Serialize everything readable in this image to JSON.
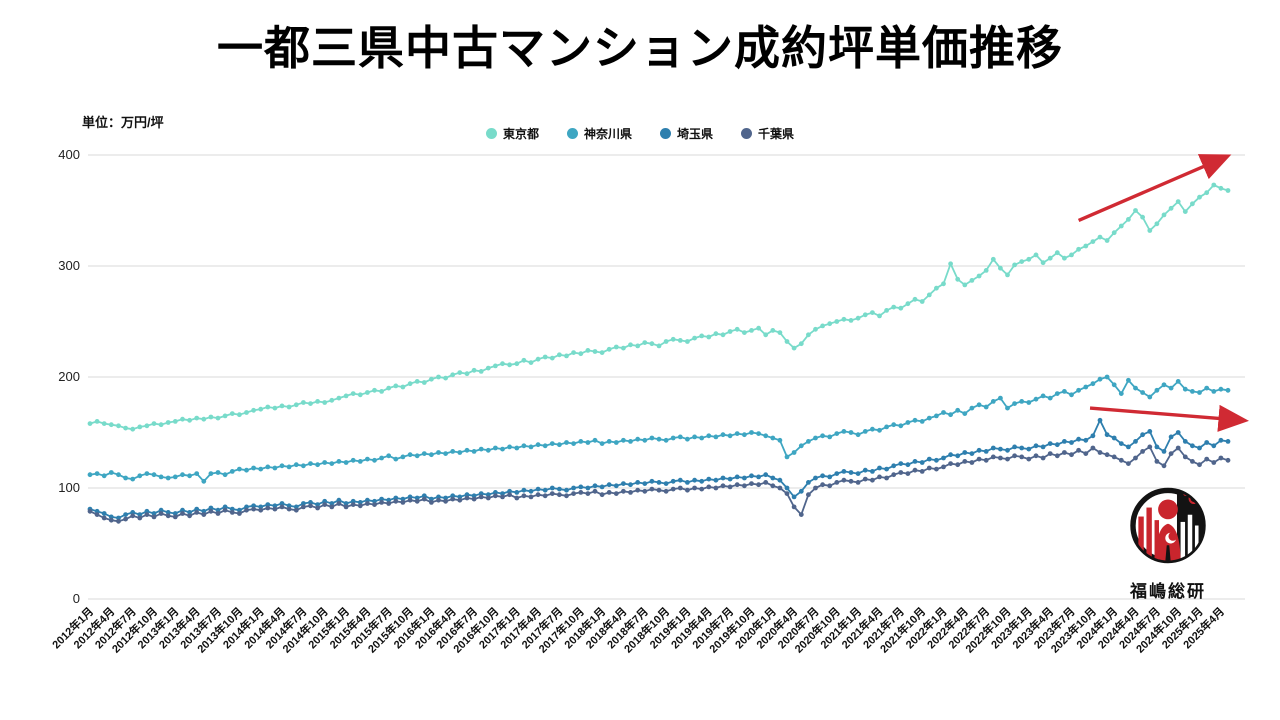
{
  "title": "一都三県中古マンション成約坪単価推移",
  "unit_label": "単位：万円/坪",
  "legend": {
    "items": [
      {
        "label": "東京都",
        "color": "#78dbca"
      },
      {
        "label": "神奈川県",
        "color": "#3ea6c2"
      },
      {
        "label": "埼玉県",
        "color": "#2e7fae"
      },
      {
        "label": "千葉県",
        "color": "#50658c"
      }
    ]
  },
  "logo": {
    "caption": "福嶋総研"
  },
  "chart_data": {
    "type": "line",
    "title": "一都三県中古マンション成約坪単価推移",
    "ylabel": "万円/坪",
    "ylim": [
      0,
      400
    ],
    "y_ticks": [
      0,
      100,
      200,
      300,
      400
    ],
    "grid": "horizontal",
    "legend_position": "top-center",
    "x_unit": "month",
    "x_start": "2012年1月",
    "x_end": "2025年5月",
    "x_tick_step_months": 3,
    "x_tick_labels": [
      "2012年1月",
      "2012年4月",
      "2012年7月",
      "2012年10月",
      "2013年1月",
      "2013年4月",
      "2013年7月",
      "2013年10月",
      "2014年1月",
      "2014年4月",
      "2014年7月",
      "2014年10月",
      "2015年1月",
      "2015年4月",
      "2015年7月",
      "2015年10月",
      "2016年1月",
      "2016年4月",
      "2016年7月",
      "2016年10月",
      "2017年1月",
      "2017年4月",
      "2017年7月",
      "2017年10月",
      "2018年1月",
      "2018年4月",
      "2018年7月",
      "2018年10月",
      "2019年1月",
      "2019年4月",
      "2019年7月",
      "2019年10月",
      "2020年1月",
      "2020年4月",
      "2020年7月",
      "2020年10月",
      "2021年1月",
      "2021年4月",
      "2021年7月",
      "2021年10月",
      "2022年1月",
      "2022年4月",
      "2022年7月",
      "2022年10月",
      "2023年1月",
      "2023年4月",
      "2023年7月",
      "2023年10月",
      "2024年1月",
      "2024年4月",
      "2024年7月",
      "2024年10月",
      "2025年1月",
      "2025年4月"
    ],
    "series": [
      {
        "name": "東京都",
        "color": "#78dbca",
        "values": [
          158,
          160,
          158,
          157,
          156,
          154,
          153,
          155,
          156,
          158,
          157,
          159,
          160,
          162,
          161,
          163,
          162,
          164,
          163,
          165,
          167,
          166,
          168,
          170,
          171,
          173,
          172,
          174,
          173,
          175,
          177,
          176,
          178,
          177,
          179,
          181,
          183,
          185,
          184,
          186,
          188,
          187,
          190,
          192,
          191,
          194,
          196,
          195,
          198,
          200,
          199,
          202,
          204,
          203,
          206,
          205,
          208,
          210,
          212,
          211,
          212,
          215,
          213,
          216,
          218,
          217,
          220,
          219,
          222,
          221,
          224,
          223,
          222,
          225,
          227,
          226,
          229,
          228,
          231,
          230,
          228,
          232,
          234,
          233,
          232,
          235,
          237,
          236,
          239,
          238,
          241,
          243,
          240,
          242,
          244,
          238,
          242,
          240,
          232,
          226,
          230,
          238,
          243,
          246,
          248,
          250,
          252,
          251,
          253,
          256,
          258,
          255,
          260,
          263,
          262,
          266,
          270,
          268,
          274,
          280,
          284,
          302,
          288,
          283,
          287,
          291,
          296,
          306,
          298,
          292,
          301,
          304,
          306,
          310,
          303,
          307,
          312,
          307,
          310,
          315,
          318,
          322,
          326,
          323,
          330,
          336,
          342,
          350,
          344,
          332,
          338,
          346,
          352,
          358,
          349,
          356,
          362,
          366,
          373,
          370,
          368
        ]
      },
      {
        "name": "神奈川県",
        "color": "#3ea6c2",
        "values": [
          112,
          113,
          111,
          114,
          112,
          109,
          108,
          111,
          113,
          112,
          110,
          109,
          110,
          112,
          111,
          113,
          106,
          113,
          114,
          112,
          115,
          117,
          116,
          118,
          117,
          119,
          118,
          120,
          119,
          121,
          120,
          122,
          121,
          123,
          122,
          124,
          123,
          125,
          124,
          126,
          125,
          127,
          129,
          126,
          128,
          130,
          129,
          131,
          130,
          132,
          131,
          133,
          132,
          134,
          133,
          135,
          134,
          136,
          135,
          137,
          136,
          138,
          137,
          139,
          138,
          140,
          139,
          141,
          140,
          142,
          141,
          143,
          140,
          142,
          141,
          143,
          142,
          144,
          143,
          145,
          144,
          143,
          145,
          146,
          144,
          146,
          145,
          147,
          146,
          148,
          147,
          149,
          148,
          150,
          149,
          147,
          145,
          143,
          128,
          132,
          138,
          142,
          145,
          147,
          146,
          149,
          151,
          150,
          148,
          151,
          153,
          152,
          155,
          157,
          156,
          159,
          161,
          160,
          163,
          165,
          168,
          166,
          170,
          167,
          172,
          175,
          173,
          178,
          181,
          172,
          176,
          178,
          177,
          180,
          183,
          181,
          185,
          187,
          184,
          188,
          191,
          194,
          198,
          200,
          193,
          185,
          197,
          190,
          186,
          182,
          188,
          193,
          190,
          196,
          189,
          187,
          186,
          190,
          187,
          189,
          188
        ]
      },
      {
        "name": "埼玉県",
        "color": "#2e7fae",
        "values": [
          81,
          79,
          77,
          74,
          73,
          76,
          78,
          76,
          79,
          77,
          80,
          78,
          77,
          80,
          78,
          81,
          79,
          82,
          80,
          83,
          81,
          80,
          83,
          84,
          83,
          85,
          84,
          86,
          84,
          83,
          86,
          87,
          85,
          88,
          86,
          89,
          86,
          88,
          87,
          89,
          88,
          90,
          89,
          91,
          90,
          92,
          91,
          93,
          90,
          92,
          91,
          93,
          92,
          94,
          93,
          95,
          94,
          96,
          95,
          97,
          96,
          98,
          97,
          99,
          98,
          100,
          99,
          98,
          100,
          101,
          100,
          102,
          101,
          103,
          102,
          104,
          103,
          105,
          104,
          106,
          105,
          104,
          106,
          107,
          105,
          107,
          106,
          108,
          107,
          109,
          108,
          110,
          109,
          111,
          110,
          112,
          109,
          107,
          100,
          92,
          97,
          105,
          109,
          111,
          110,
          113,
          115,
          114,
          113,
          116,
          115,
          118,
          117,
          120,
          122,
          121,
          124,
          123,
          126,
          125,
          127,
          130,
          129,
          132,
          131,
          134,
          133,
          136,
          135,
          134,
          137,
          136,
          135,
          138,
          137,
          140,
          139,
          142,
          141,
          144,
          143,
          147,
          161,
          148,
          145,
          140,
          137,
          142,
          148,
          151,
          137,
          133,
          146,
          150,
          142,
          138,
          136,
          141,
          138,
          143,
          142
        ]
      },
      {
        "name": "千葉県",
        "color": "#50658c",
        "values": [
          79,
          76,
          73,
          71,
          70,
          72,
          75,
          73,
          76,
          74,
          77,
          75,
          74,
          77,
          75,
          78,
          76,
          79,
          77,
          80,
          78,
          77,
          80,
          81,
          80,
          82,
          81,
          83,
          81,
          80,
          83,
          84,
          82,
          85,
          83,
          86,
          83,
          85,
          84,
          86,
          85,
          87,
          86,
          88,
          87,
          89,
          88,
          90,
          87,
          89,
          88,
          90,
          89,
          91,
          90,
          92,
          91,
          93,
          92,
          94,
          91,
          93,
          92,
          94,
          93,
          95,
          94,
          93,
          95,
          96,
          95,
          97,
          94,
          96,
          95,
          97,
          96,
          98,
          97,
          99,
          98,
          97,
          99,
          100,
          98,
          100,
          99,
          101,
          100,
          102,
          101,
          103,
          102,
          104,
          103,
          105,
          102,
          100,
          95,
          83,
          76,
          94,
          100,
          103,
          102,
          105,
          107,
          106,
          105,
          108,
          107,
          110,
          109,
          112,
          114,
          113,
          116,
          115,
          118,
          117,
          119,
          122,
          121,
          124,
          123,
          126,
          125,
          128,
          127,
          126,
          129,
          128,
          126,
          129,
          127,
          131,
          129,
          132,
          130,
          134,
          131,
          136,
          132,
          130,
          128,
          125,
          122,
          127,
          133,
          137,
          124,
          120,
          131,
          136,
          128,
          124,
          121,
          126,
          123,
          127,
          125
        ]
      }
    ],
    "annotations": [
      {
        "type": "arrow",
        "color": "#d02a33",
        "note": "tokyo-uptrend",
        "from": {
          "month_index": 139.0,
          "value": 341
        },
        "to": {
          "month_index": 159.6,
          "value": 398
        }
      },
      {
        "type": "arrow",
        "color": "#d02a33",
        "note": "suburb-downtrend",
        "from": {
          "month_index": 140.6,
          "value": 172
        },
        "to": {
          "month_index": 162.0,
          "value": 161
        }
      }
    ]
  }
}
